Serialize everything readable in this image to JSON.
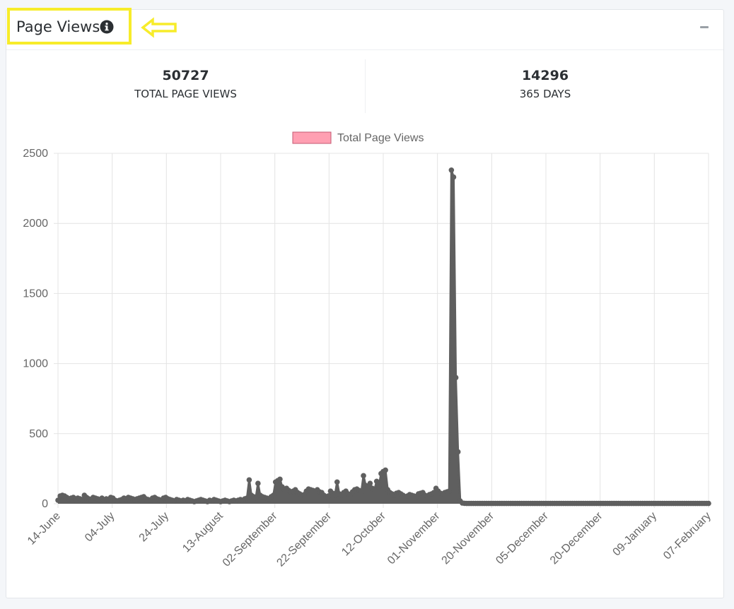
{
  "widget": {
    "title": "Page Views",
    "info_icon": "info-circle-icon",
    "collapse_icon": "minus-icon",
    "highlight_color": "#f7ec2a"
  },
  "stats": [
    {
      "value": "50727",
      "label": "TOTAL PAGE VIEWS"
    },
    {
      "value": "14296",
      "label": "365 DAYS"
    }
  ],
  "chart_data": {
    "type": "line",
    "legend": {
      "label": "Total Page Views",
      "color": "#ff9fb2",
      "position": "top"
    },
    "line_color": "#5f5f5f",
    "y_ticks": [
      "2500",
      "2000",
      "1500",
      "1000",
      "500",
      "0"
    ],
    "ylim": [
      0,
      2500
    ],
    "grid": true,
    "x_tick_labels": [
      "14-June",
      "04-July",
      "24-July",
      "13-August",
      "02-September",
      "22-September",
      "12-October",
      "01-November",
      "20-November",
      "05-December",
      "20-December",
      "09-January",
      "07-February"
    ],
    "x_range": [
      "2023-06-14",
      "2024-02-07"
    ],
    "series": [
      {
        "name": "Total Page Views",
        "values": [
          25,
          55,
          60,
          55,
          45,
          35,
          40,
          45,
          30,
          40,
          35,
          30,
          60,
          45,
          35,
          30,
          45,
          40,
          35,
          30,
          40,
          25,
          35,
          30,
          45,
          40,
          25,
          20,
          25,
          30,
          40,
          35,
          45,
          40,
          35,
          30,
          35,
          40,
          45,
          50,
          35,
          30,
          25,
          40,
          45,
          35,
          30,
          25,
          40,
          45,
          35,
          30,
          25,
          20,
          30,
          25,
          20,
          25,
          20,
          30,
          25,
          20,
          15,
          20,
          25,
          30,
          25,
          20,
          15,
          25,
          20,
          30,
          25,
          20,
          15,
          20,
          25,
          20,
          15,
          20,
          25,
          20,
          25,
          30,
          25,
          35,
          40,
          170,
          60,
          50,
          40,
          145,
          60,
          50,
          45,
          40,
          35,
          50,
          60,
          155,
          165,
          175,
          120,
          100,
          110,
          95,
          85,
          90,
          100,
          80,
          70,
          60,
          65,
          90,
          105,
          100,
          95,
          90,
          100,
          85,
          80,
          60,
          50,
          55,
          90,
          75,
          60,
          155,
          70,
          60,
          80,
          90,
          70,
          65,
          85,
          100,
          105,
          95,
          80,
          200,
          130,
          120,
          145,
          110,
          100,
          160,
          120,
          215,
          230,
          240,
          100,
          80,
          70,
          60,
          75,
          80,
          70,
          60,
          50,
          55,
          65,
          60,
          55,
          50,
          70,
          75,
          80,
          60,
          55,
          65,
          70,
          80,
          110,
          90,
          75,
          70,
          80,
          85,
          90,
          2380,
          2330,
          900,
          370,
          20,
          5,
          3,
          2,
          2,
          2,
          2,
          2,
          2,
          2,
          2,
          2,
          2,
          2,
          2,
          2,
          2,
          2,
          2,
          2,
          2,
          2,
          2,
          2,
          2,
          2,
          2,
          2,
          2,
          2,
          2,
          2,
          2,
          2,
          2,
          2,
          2,
          2,
          2,
          2,
          2,
          2,
          2,
          2,
          2,
          2,
          2,
          2,
          2,
          2,
          2,
          2,
          2,
          2,
          2,
          2,
          2,
          2,
          2,
          2,
          2,
          2,
          2,
          2,
          2,
          2,
          2,
          2,
          2,
          2,
          2,
          2,
          2,
          2,
          2,
          2,
          2,
          2,
          2,
          2,
          2,
          2,
          2,
          2,
          2,
          2,
          2,
          2,
          2,
          2,
          2,
          2,
          2,
          2,
          2,
          2,
          2,
          2,
          2,
          2,
          2,
          2,
          2,
          2,
          2,
          2,
          2,
          2,
          2,
          2,
          2,
          2,
          2,
          2
        ]
      }
    ]
  }
}
